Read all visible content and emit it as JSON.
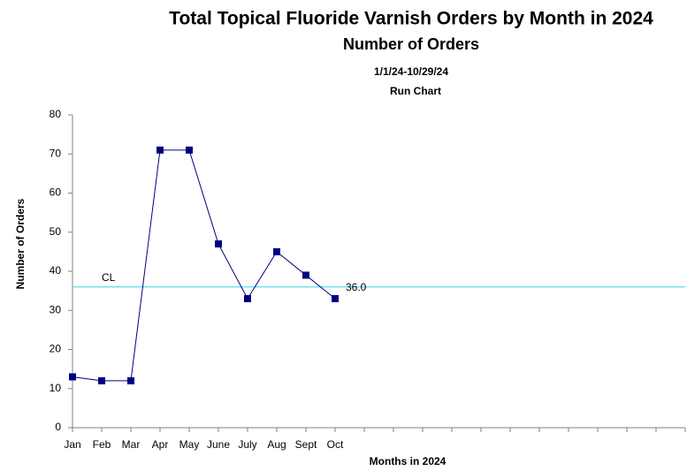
{
  "chart_data": {
    "type": "line",
    "title": "Total Topical Fluoride Varnish Orders by Month in 2024",
    "subtitle": "Number of Orders",
    "date_range": "1/1/24-10/29/24",
    "chart_kind": "Run Chart",
    "x_label": "Months in 2024",
    "y_label": "Number of Orders",
    "categories": [
      "Jan",
      "Feb",
      "Mar",
      "Apr",
      "May",
      "June",
      "July",
      "Aug",
      "Sept",
      "Oct",
      null,
      null,
      null,
      null,
      null,
      null,
      null,
      null,
      null,
      null,
      null,
      null
    ],
    "series": [
      {
        "name": "Number of Orders",
        "color": "#000080",
        "values": [
          13,
          12,
          12,
          71,
          71,
          47,
          33,
          45,
          39,
          33,
          null,
          null,
          null,
          null,
          null,
          null,
          null,
          null,
          null,
          null,
          null,
          null
        ]
      }
    ],
    "center_line": {
      "label": "CL",
      "value": 36,
      "value_label": "36.0",
      "color": "#4fd8e8"
    },
    "ylim": [
      0,
      80
    ],
    "yticks": [
      0,
      10,
      20,
      30,
      40,
      50,
      60,
      70,
      80
    ],
    "grid": false
  }
}
